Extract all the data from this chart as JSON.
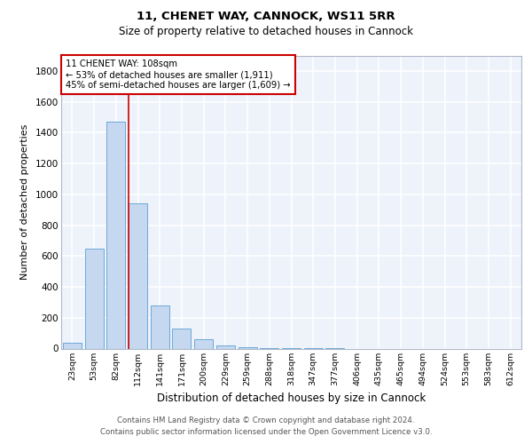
{
  "title1": "11, CHENET WAY, CANNOCK, WS11 5RR",
  "title2": "Size of property relative to detached houses in Cannock",
  "xlabel": "Distribution of detached houses by size in Cannock",
  "ylabel": "Number of detached properties",
  "bar_labels": [
    "23sqm",
    "53sqm",
    "82sqm",
    "112sqm",
    "141sqm",
    "171sqm",
    "200sqm",
    "229sqm",
    "259sqm",
    "288sqm",
    "318sqm",
    "347sqm",
    "377sqm",
    "406sqm",
    "435sqm",
    "465sqm",
    "494sqm",
    "524sqm",
    "553sqm",
    "583sqm",
    "612sqm"
  ],
  "bar_values": [
    40,
    650,
    1470,
    940,
    280,
    130,
    58,
    20,
    8,
    3,
    2,
    1,
    2,
    0,
    0,
    0,
    0,
    0,
    0,
    0,
    0
  ],
  "bar_color": "#c5d8f0",
  "bar_edge_color": "#5a9fd4",
  "vline_color": "#cc0000",
  "annotation_line1": "11 CHENET WAY: 108sqm",
  "annotation_line2": "← 53% of detached houses are smaller (1,911)",
  "annotation_line3": "45% of semi-detached houses are larger (1,609) →",
  "annotation_box_color": "#ffffff",
  "annotation_box_edge": "#cc0000",
  "ylim": [
    0,
    1900
  ],
  "yticks": [
    0,
    200,
    400,
    600,
    800,
    1000,
    1200,
    1400,
    1600,
    1800
  ],
  "bg_color": "#edf2fb",
  "grid_color": "#ffffff",
  "footer_line1": "Contains HM Land Registry data © Crown copyright and database right 2024.",
  "footer_line2": "Contains public sector information licensed under the Open Government Licence v3.0."
}
